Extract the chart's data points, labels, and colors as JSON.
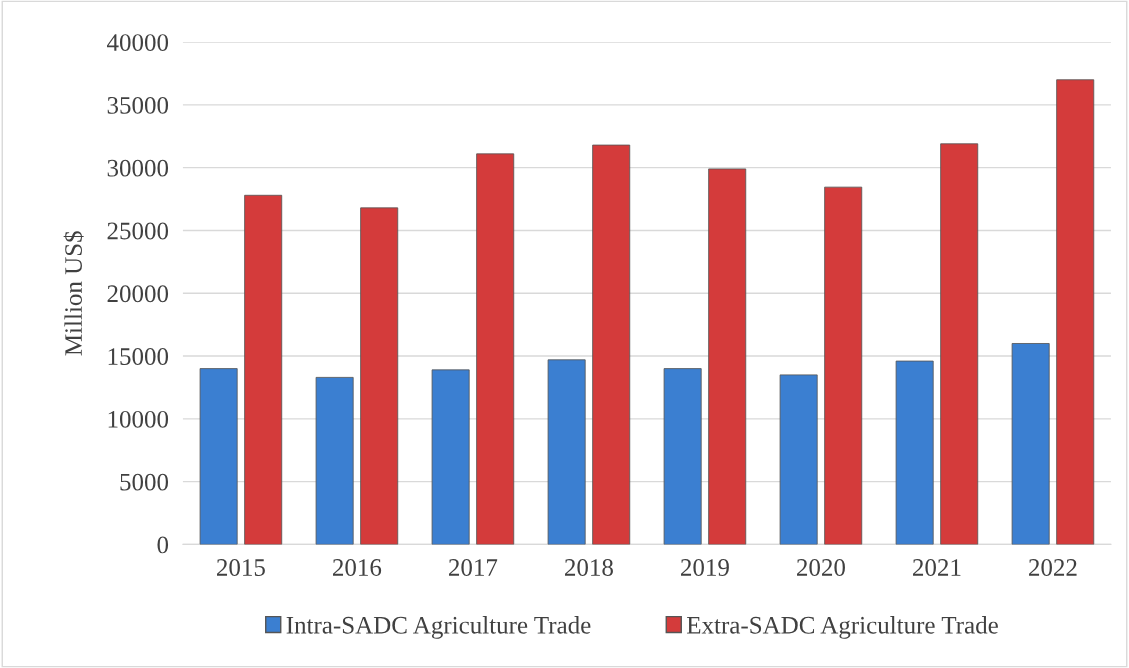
{
  "chart_data": {
    "type": "bar",
    "ylabel": "Million US$",
    "categories": [
      "2015",
      "2016",
      "2017",
      "2018",
      "2019",
      "2020",
      "2021",
      "2022"
    ],
    "series": [
      {
        "name": "Intra-SADC Agriculture Trade",
        "color": "#3b7fd1",
        "values": [
          14000,
          13300,
          13900,
          14700,
          14000,
          13500,
          14600,
          16000
        ]
      },
      {
        "name": "Extra-SADC Agriculture Trade",
        "color": "#d43b3b",
        "values": [
          27800,
          26800,
          31100,
          31800,
          29900,
          28450,
          31900,
          37000
        ]
      }
    ],
    "ylim": [
      0,
      40000
    ],
    "yticks": [
      0,
      5000,
      10000,
      15000,
      20000,
      25000,
      30000,
      35000,
      40000
    ],
    "grid": "y",
    "legend": "bottom"
  }
}
